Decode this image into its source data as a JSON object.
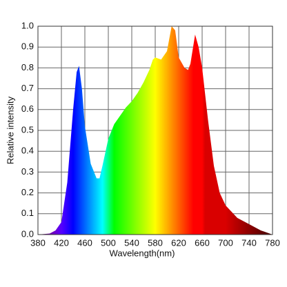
{
  "chart_data": {
    "type": "area",
    "x_label": "Wavelength(nm)",
    "y_label": "Relative intensity",
    "x": [
      380,
      400,
      410,
      420,
      430,
      440,
      446,
      450,
      455,
      460,
      470,
      480,
      485,
      490,
      500,
      510,
      520,
      530,
      540,
      550,
      560,
      570,
      576,
      580,
      590,
      600,
      608,
      614,
      620,
      630,
      636,
      640,
      648,
      654,
      660,
      670,
      680,
      690,
      700,
      720,
      740,
      760,
      780
    ],
    "values": [
      0.0,
      0.005,
      0.02,
      0.06,
      0.25,
      0.6,
      0.78,
      0.81,
      0.7,
      0.52,
      0.34,
      0.27,
      0.27,
      0.33,
      0.46,
      0.53,
      0.57,
      0.61,
      0.64,
      0.68,
      0.73,
      0.79,
      0.84,
      0.85,
      0.84,
      0.88,
      1.0,
      0.98,
      0.85,
      0.8,
      0.79,
      0.82,
      0.96,
      0.9,
      0.8,
      0.55,
      0.33,
      0.2,
      0.14,
      0.08,
      0.05,
      0.02,
      0.0
    ],
    "color": "spectrum",
    "xlim": [
      380,
      780
    ],
    "xticks": [
      380,
      420,
      460,
      500,
      540,
      580,
      620,
      660,
      700,
      740,
      780
    ],
    "ylim": [
      0,
      1
    ],
    "yticks": [
      {
        "value": 0,
        "label": "0.0"
      },
      0.1,
      0.2,
      0.3,
      0.4,
      0.5,
      0.6,
      0.7,
      0.8,
      0.9,
      {
        "value": 1,
        "label": "1.0"
      }
    ],
    "grid": true
  }
}
